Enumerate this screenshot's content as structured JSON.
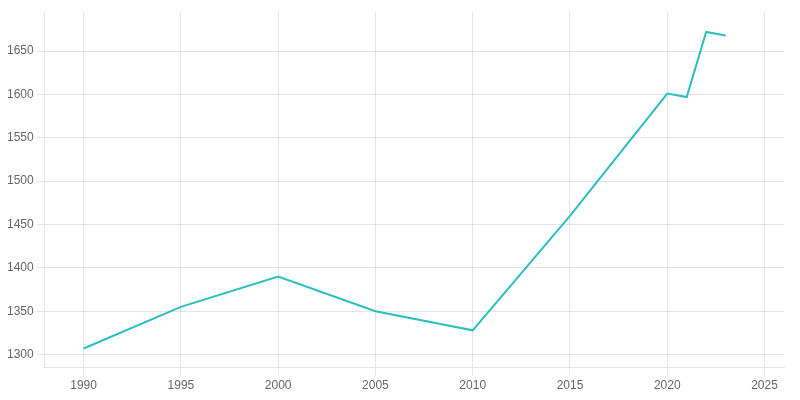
{
  "chart_data": {
    "type": "line",
    "x": [
      1990,
      1995,
      2000,
      2005,
      2010,
      2015,
      2020,
      2021,
      2022,
      2023
    ],
    "values": [
      1307,
      1355,
      1390,
      1350,
      1328,
      1460,
      1601,
      1597,
      1672,
      1668
    ],
    "color": "#2bbfbf",
    "xlim": [
      1988,
      2026
    ],
    "ylim": [
      1285,
      1695
    ],
    "xticks": [
      1990,
      1995,
      2000,
      2005,
      2010,
      2015,
      2020,
      2025
    ],
    "yticks": [
      1300,
      1350,
      1400,
      1450,
      1500,
      1550,
      1600,
      1650
    ],
    "grid": true
  }
}
